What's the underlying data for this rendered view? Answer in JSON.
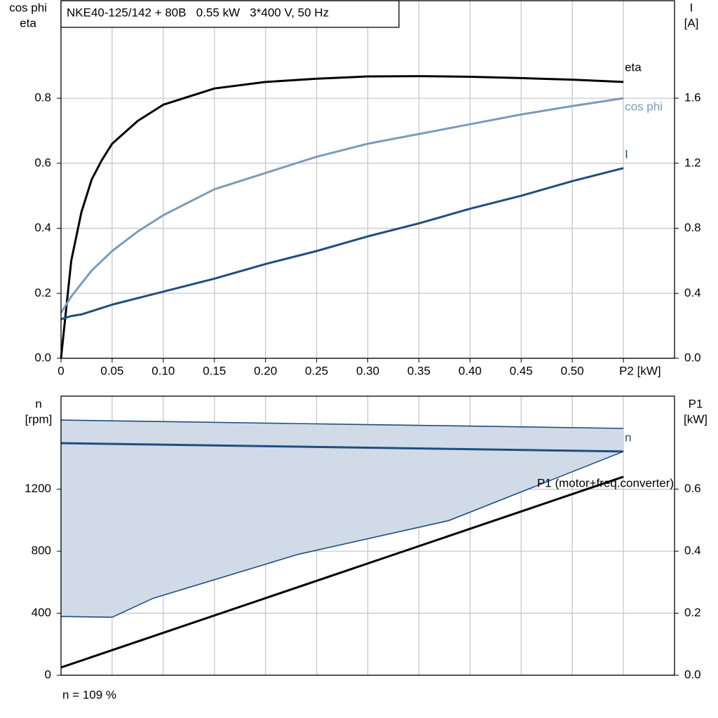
{
  "chart_data": [
    {
      "type": "line",
      "title": "NKE40-125/142 + 80B   0.55 kW   3*400 V, 50 Hz",
      "ylabel": [
        "cos phi",
        "eta"
      ],
      "y2label": [
        "I",
        "[A]"
      ],
      "x": [
        0,
        0.01,
        0.02,
        0.03,
        0.04,
        0.05,
        0.075,
        0.1,
        0.15,
        0.2,
        0.25,
        0.3,
        0.35,
        0.4,
        0.45,
        0.5,
        0.55
      ],
      "xlim": [
        0,
        0.6
      ],
      "xticks": [
        0,
        0.05,
        {
          "value": 0.1,
          "label": "0.10"
        },
        0.15,
        {
          "value": 0.2,
          "label": "0.20"
        },
        0.25,
        {
          "value": 0.3,
          "label": "0.30"
        },
        0.35,
        {
          "value": 0.4,
          "label": "0.40"
        },
        0.45,
        {
          "value": 0.5,
          "label": "0.50"
        },
        {
          "value": 0.55,
          "label": "P2 [kW]"
        }
      ],
      "ylim": [
        0,
        1.1
      ],
      "yticks": [
        {
          "value": 0,
          "label": "0.0"
        },
        0.2,
        0.4,
        0.6,
        0.8
      ],
      "y2lim": [
        0,
        2.2
      ],
      "y2ticks": [
        {
          "value": 0,
          "label": "0.0"
        },
        0.4,
        0.8,
        1.2,
        1.6
      ],
      "grid": true,
      "series": [
        {
          "name": "eta",
          "color": "#000000",
          "values": [
            0,
            0.3,
            0.45,
            0.55,
            0.61,
            0.66,
            0.73,
            0.78,
            0.83,
            0.85,
            0.86,
            0.867,
            0.868,
            0.866,
            0.862,
            0.857,
            0.85
          ]
        },
        {
          "name": "cos phi",
          "color": "#7a9cbb",
          "values": [
            0.14,
            0.19,
            0.23,
            0.27,
            0.3,
            0.33,
            0.39,
            0.44,
            0.52,
            0.57,
            0.62,
            0.66,
            0.69,
            0.72,
            0.75,
            0.776,
            0.8
          ]
        },
        {
          "name": "I",
          "color": "#1f4e80",
          "axis": "y2",
          "values": [
            0.24,
            0.26,
            0.27,
            0.29,
            0.31,
            0.33,
            0.37,
            0.41,
            0.49,
            0.58,
            0.66,
            0.75,
            0.83,
            0.92,
            1.0,
            1.09,
            1.17
          ]
        }
      ]
    },
    {
      "type": "line",
      "ylabel": [
        "n",
        "[rpm]"
      ],
      "y2label": [
        "P1",
        "[kW]"
      ],
      "note": "n = 109 %",
      "x": [
        0,
        0.55
      ],
      "xlim": [
        0,
        0.6
      ],
      "ylim": [
        0,
        1800
      ],
      "yticks": [
        0,
        400,
        800,
        1200
      ],
      "y2lim": [
        0,
        0.9
      ],
      "y2ticks": [
        {
          "value": 0,
          "label": "0.0"
        },
        0.2,
        0.4,
        0.6
      ],
      "grid": true,
      "band": {
        "color": "#d0dbe7",
        "x": [
          0,
          0.05,
          0.09,
          0.232,
          0.379,
          0.55
        ],
        "upper": [
          1646,
          1641,
          1637,
          1623,
          1609,
          1592
        ],
        "lower": [
          379,
          374,
          496,
          780,
          997,
          1443
        ]
      },
      "series": [
        {
          "name": "n",
          "color": "#1f4e80",
          "values": [
            1497,
            1443
          ]
        },
        {
          "name": "P1 (motor+freq.converter)",
          "color": "#000000",
          "axis": "y2",
          "values": [
            0.025,
            0.64
          ]
        }
      ]
    }
  ]
}
